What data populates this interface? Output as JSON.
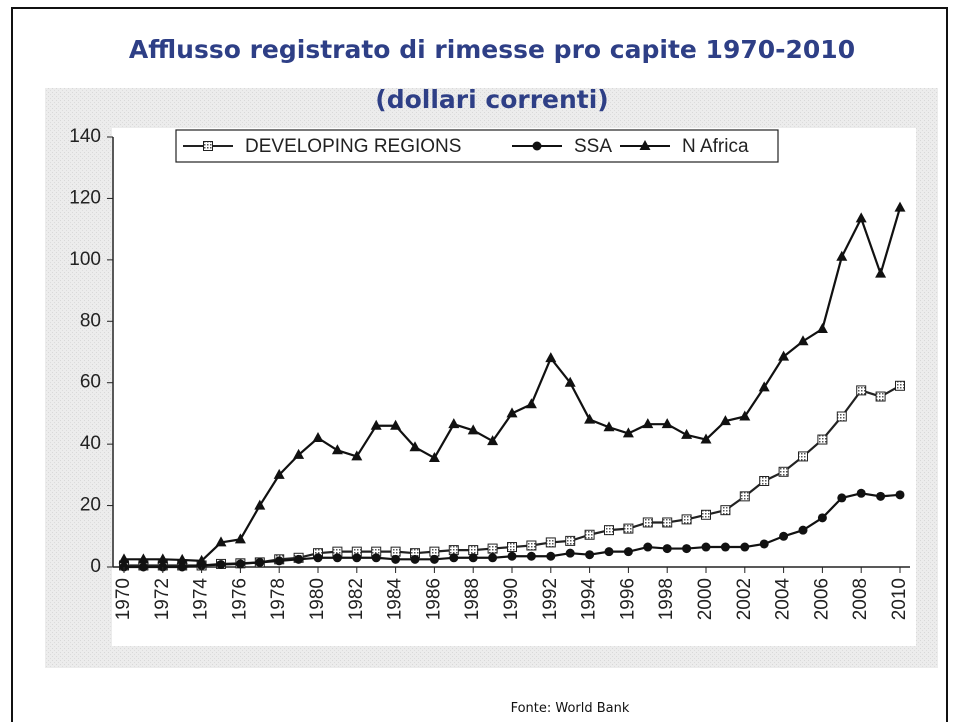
{
  "chart_data": {
    "type": "line",
    "title": "Afflusso registrato di rimesse pro capite  1970-2010",
    "subtitle": "(dollari correnti)",
    "source": "Fonte: World Bank",
    "x": [
      1970,
      1971,
      1972,
      1973,
      1974,
      1975,
      1976,
      1977,
      1978,
      1979,
      1980,
      1981,
      1982,
      1983,
      1984,
      1985,
      1986,
      1987,
      1988,
      1989,
      1990,
      1991,
      1992,
      1993,
      1994,
      1995,
      1996,
      1997,
      1998,
      1999,
      2000,
      2001,
      2002,
      2003,
      2004,
      2005,
      2006,
      2007,
      2008,
      2009,
      2010
    ],
    "series": [
      {
        "name": "DEVELOPING REGIONS",
        "color": "#222222",
        "marker": "square",
        "values": [
          0.5,
          0.5,
          0.5,
          0.5,
          0.5,
          1,
          1.2,
          1.5,
          2.5,
          3,
          4.5,
          5,
          5,
          5,
          5,
          4.5,
          5,
          5.5,
          5.5,
          6,
          6.5,
          7,
          8,
          8.5,
          10.5,
          12,
          12.5,
          14.5,
          14.5,
          15.5,
          17,
          18.5,
          23,
          28,
          31,
          36,
          41.5,
          49,
          57.5,
          55.5,
          59
        ]
      },
      {
        "name": "SSA",
        "color": "#111111",
        "marker": "circle",
        "values": [
          0,
          0,
          0,
          0,
          0.5,
          0.8,
          1,
          1.5,
          2,
          2.5,
          3,
          3,
          3,
          3,
          2.5,
          2.5,
          2.5,
          3,
          3,
          3,
          3.5,
          3.5,
          3.5,
          4.5,
          4,
          5,
          5,
          6.5,
          6,
          6,
          6.5,
          6.5,
          6.5,
          7.5,
          10,
          12,
          16,
          22.5,
          24,
          23,
          23.5
        ]
      },
      {
        "name": "N Africa",
        "color": "#111111",
        "marker": "triangle",
        "values": [
          2.5,
          2.5,
          2.5,
          2.3,
          2,
          8,
          9,
          20,
          30,
          36.5,
          42,
          38,
          36,
          46,
          46,
          39,
          35.5,
          46.5,
          44.5,
          41,
          50,
          53,
          68,
          60,
          48,
          45.5,
          43.5,
          46.5,
          46.5,
          43,
          41.5,
          47.5,
          49,
          58.5,
          68.5,
          73.5,
          77.5,
          101,
          113.5,
          95.5,
          117
        ]
      }
    ],
    "xlim": [
      1970,
      2010
    ],
    "xticks": [
      1970,
      1972,
      1974,
      1976,
      1978,
      1980,
      1982,
      1984,
      1986,
      1988,
      1990,
      1992,
      1994,
      1996,
      1998,
      2000,
      2002,
      2004,
      2006,
      2008,
      2010
    ],
    "ylim": [
      0,
      140
    ],
    "yticks": [
      0,
      20,
      40,
      60,
      80,
      100,
      120,
      140
    ],
    "grid": false,
    "legend": "top"
  }
}
